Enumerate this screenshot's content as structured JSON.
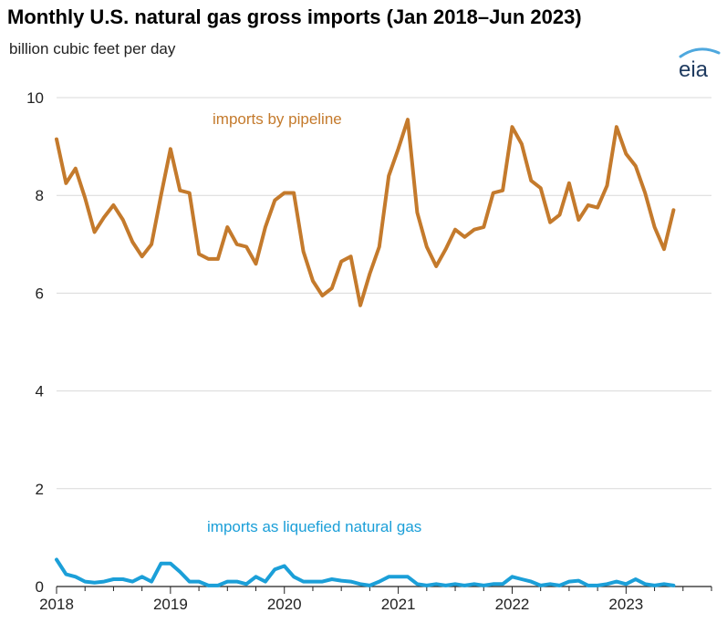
{
  "title": "Monthly U.S. natural gas gross imports (Jan 2018–Jun 2023)",
  "subtitle": "billion cubic feet per day",
  "logo_text": "eia",
  "colors": {
    "pipeline": "#c47a2c",
    "lng": "#1b9fd8",
    "grid": "#d9d9d9",
    "logo": "#1e3a5f",
    "logo_swoosh": "#4ea8de"
  },
  "chart_data": {
    "type": "line",
    "xlabel": "",
    "ylabel": "billion cubic feet per day",
    "x_start": "2018-01",
    "xlim_years": [
      2018,
      2023.75
    ],
    "ylim": [
      0,
      10
    ],
    "yticks": [
      0,
      2,
      4,
      6,
      8,
      10
    ],
    "ytick_labels": [
      "0",
      "2",
      "4",
      "6",
      "8",
      "10"
    ],
    "xticks": [
      2018,
      2019,
      2020,
      2021,
      2022,
      2023
    ],
    "xtick_labels": [
      "2018",
      "2019",
      "2020",
      "2021",
      "2022",
      "2023"
    ],
    "grid": "horizontal",
    "series": [
      {
        "name": "imports by pipeline",
        "values": [
          9.15,
          8.25,
          8.55,
          7.95,
          7.25,
          7.55,
          7.8,
          7.5,
          7.05,
          6.75,
          7.0,
          8.0,
          8.95,
          8.1,
          8.05,
          6.8,
          6.7,
          6.7,
          7.35,
          7.0,
          6.95,
          6.6,
          7.35,
          7.9,
          8.05,
          8.05,
          6.85,
          6.25,
          5.95,
          6.1,
          6.65,
          6.75,
          5.75,
          6.4,
          6.95,
          8.4,
          8.95,
          9.55,
          7.65,
          6.95,
          6.55,
          6.9,
          7.3,
          7.15,
          7.3,
          7.35,
          8.05,
          8.1,
          9.4,
          9.05,
          8.3,
          8.15,
          7.45,
          7.6,
          8.25,
          7.5,
          7.8,
          7.75,
          8.2,
          9.4,
          8.85,
          8.6,
          8.05,
          7.35,
          6.9,
          7.7
        ]
      },
      {
        "name": "imports as liquefied natural gas",
        "values": [
          0.55,
          0.25,
          0.2,
          0.1,
          0.08,
          0.1,
          0.15,
          0.15,
          0.1,
          0.2,
          0.1,
          0.47,
          0.47,
          0.3,
          0.1,
          0.1,
          0.02,
          0.02,
          0.1,
          0.1,
          0.05,
          0.2,
          0.1,
          0.35,
          0.42,
          0.2,
          0.1,
          0.1,
          0.1,
          0.15,
          0.12,
          0.1,
          0.05,
          0.02,
          0.1,
          0.2,
          0.2,
          0.2,
          0.05,
          0.02,
          0.05,
          0.02,
          0.05,
          0.02,
          0.05,
          0.02,
          0.05,
          0.05,
          0.2,
          0.15,
          0.1,
          0.02,
          0.05,
          0.02,
          0.1,
          0.12,
          0.02,
          0.02,
          0.05,
          0.1,
          0.05,
          0.15,
          0.05,
          0.02,
          0.05,
          0.02
        ]
      }
    ]
  }
}
